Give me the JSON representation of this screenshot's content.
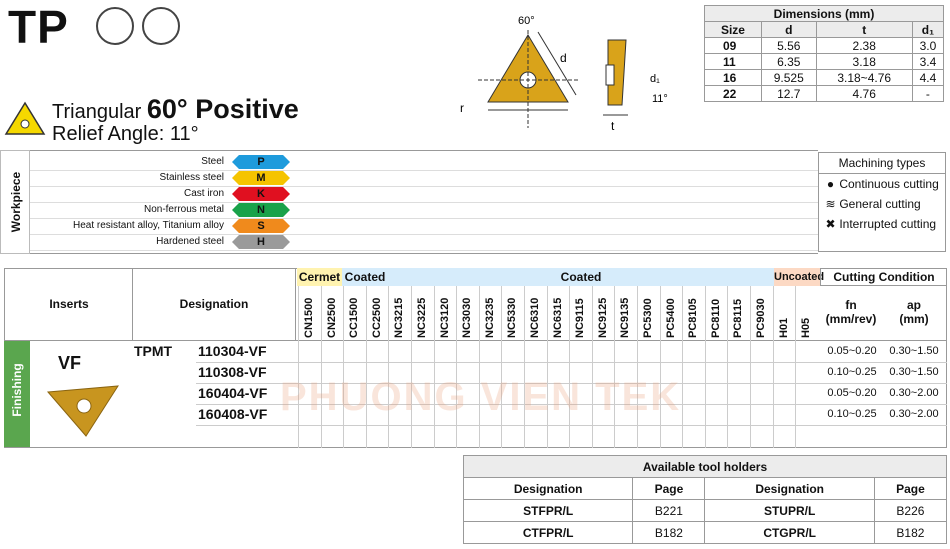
{
  "header": {
    "code": "TP",
    "shape": "Triangular",
    "angle": "60° Positive",
    "relief": "Relief Angle: 11°"
  },
  "diagram": {
    "angle_label": "60°",
    "d_label": "d",
    "r_label": "r",
    "t_label": "t",
    "d1_label": "d₁",
    "relief_label": "11°"
  },
  "dimensions": {
    "title": "Dimensions (mm)",
    "headers": [
      "Size",
      "d",
      "t",
      "d₁"
    ],
    "rows": [
      [
        "09",
        "5.56",
        "2.38",
        "3.0"
      ],
      [
        "11",
        "6.35",
        "3.18",
        "3.4"
      ],
      [
        "16",
        "9.525",
        "3.18~4.76",
        "4.4"
      ],
      [
        "22",
        "12.7",
        "4.76",
        "-"
      ]
    ]
  },
  "workpiece": {
    "title": "Workpiece",
    "rows": [
      {
        "name": "Steel",
        "code": "P",
        "color": "#1e9bdc"
      },
      {
        "name": "Stainless steel",
        "code": "M",
        "color": "#f5c400"
      },
      {
        "name": "Cast iron",
        "code": "K",
        "color": "#e01020"
      },
      {
        "name": "Non-ferrous metal",
        "code": "N",
        "color": "#1aa24a"
      },
      {
        "name": "Heat resistant alloy, Titanium alloy",
        "code": "S",
        "color": "#f08a1c"
      },
      {
        "name": "Hardened steel",
        "code": "H",
        "color": "#9a9a9a"
      }
    ]
  },
  "machining_types": {
    "title": "Machining types",
    "continuous": "Continuous cutting",
    "general": "General cutting",
    "interrupted": "Interrupted cutting"
  },
  "grades": {
    "cermet_label": "Cermet",
    "coated_label": "Coated",
    "coated_label2": "Coated",
    "uncoated_label": "Uncoated",
    "columns": [
      "CN1500",
      "CN2500",
      "CC1500",
      "CC2500",
      "NC3215",
      "NC3225",
      "NC3120",
      "NC3030",
      "NC3235",
      "NC5330",
      "NC6310",
      "NC6315",
      "NC9115",
      "NC9125",
      "NC9135",
      "PC5300",
      "PC5400",
      "PC8105",
      "PC8110",
      "PC8115",
      "PC9030",
      "H01",
      "H05"
    ]
  },
  "table": {
    "inserts_label": "Inserts",
    "designation_label": "Designation",
    "cutting_label": "Cutting Condition",
    "fn_label": "fn",
    "fn_unit": "(mm/rev)",
    "ap_label": "ap",
    "ap_unit": "(mm)",
    "finishing": "Finishing",
    "chipbreaker": "VF",
    "prefix": "TPMT",
    "rows": [
      {
        "code": "110304-VF",
        "fn": "0.05~0.20",
        "ap": "0.30~1.50"
      },
      {
        "code": "110308-VF",
        "fn": "0.10~0.25",
        "ap": "0.30~1.50"
      },
      {
        "code": "160404-VF",
        "fn": "0.05~0.20",
        "ap": "0.30~2.00"
      },
      {
        "code": "160408-VF",
        "fn": "0.10~0.25",
        "ap": "0.30~2.00"
      }
    ]
  },
  "holders": {
    "title": "Available tool holders",
    "headers": [
      "Designation",
      "Page",
      "Designation",
      "Page"
    ],
    "rows": [
      [
        "STFPR/L",
        "B221",
        "STUPR/L",
        "B226"
      ],
      [
        "CTFPR/L",
        "B182",
        "CTGPR/L",
        "B182"
      ]
    ]
  },
  "watermark": "PHUONG VIEN TEK"
}
